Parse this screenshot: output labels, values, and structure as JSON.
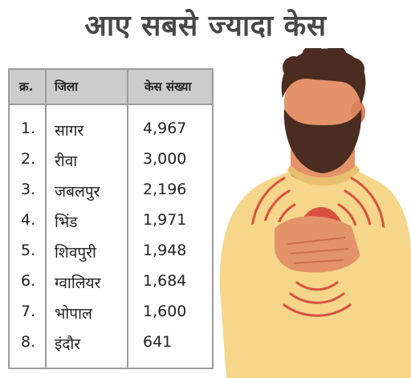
{
  "title": "आए सबसे ज्यादा केस",
  "table": {
    "headers": {
      "num": "क्र.",
      "district": "जिला",
      "cases": "केस संख्या"
    },
    "rows": [
      {
        "num": "1.",
        "district": "सागर",
        "cases": "4,967"
      },
      {
        "num": "2.",
        "district": "रीवा",
        "cases": "3,000"
      },
      {
        "num": "3.",
        "district": "जबलपुर",
        "cases": "2,196"
      },
      {
        "num": "4.",
        "district": "भिंड",
        "cases": "1,971"
      },
      {
        "num": "5.",
        "district": "शिवपुरी",
        "cases": "1,948"
      },
      {
        "num": "6.",
        "district": "ग्वालियर",
        "cases": "1,684"
      },
      {
        "num": "7.",
        "district": "भोपाल",
        "cases": "1,600"
      },
      {
        "num": "8.",
        "district": "इंदौर",
        "cases": "641"
      }
    ]
  },
  "colors": {
    "title": "#474747",
    "header_bg": "#cccccc",
    "border": "#9c9c9c",
    "shirt": "#f5d68a",
    "skin": "#e4926a",
    "hair": "#4a2c20",
    "heart": "#d9503f",
    "pain_lines": "#d9503f"
  },
  "illustration": {
    "icon": "chest-pain-man-illustration"
  }
}
